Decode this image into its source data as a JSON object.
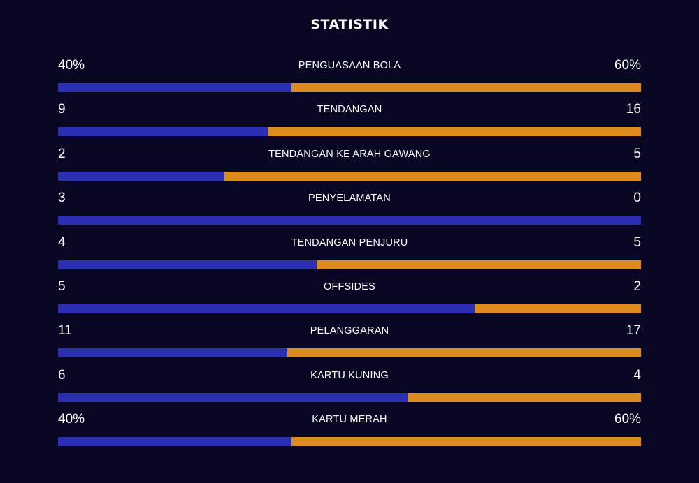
{
  "title": "STATISTIK",
  "colors": {
    "background": "#070723",
    "home": "#2a2fb4",
    "away": "#dd8a1e"
  },
  "stats": [
    {
      "label": "PENGUASAAN BOLA",
      "home": "40%",
      "away": "60%",
      "home_share": 0.4
    },
    {
      "label": "TENDANGAN",
      "home": "9",
      "away": "16",
      "home_share": 0.36
    },
    {
      "label": "TENDANGAN KE ARAH GAWANG",
      "home": "2",
      "away": "5",
      "home_share": 0.2857
    },
    {
      "label": "PENYELAMATAN",
      "home": "3",
      "away": "0",
      "home_share": 1.0
    },
    {
      "label": "TENDANGAN PENJURU",
      "home": "4",
      "away": "5",
      "home_share": 0.4444
    },
    {
      "label": "OFFSIDES",
      "home": "5",
      "away": "2",
      "home_share": 0.7143
    },
    {
      "label": "PELANGGARAN",
      "home": "11",
      "away": "17",
      "home_share": 0.3929
    },
    {
      "label": "KARTU KUNING",
      "home": "6",
      "away": "4",
      "home_share": 0.6
    },
    {
      "label": "KARTU MERAH",
      "home": "40%",
      "away": "60%",
      "home_share": 0.4
    }
  ]
}
